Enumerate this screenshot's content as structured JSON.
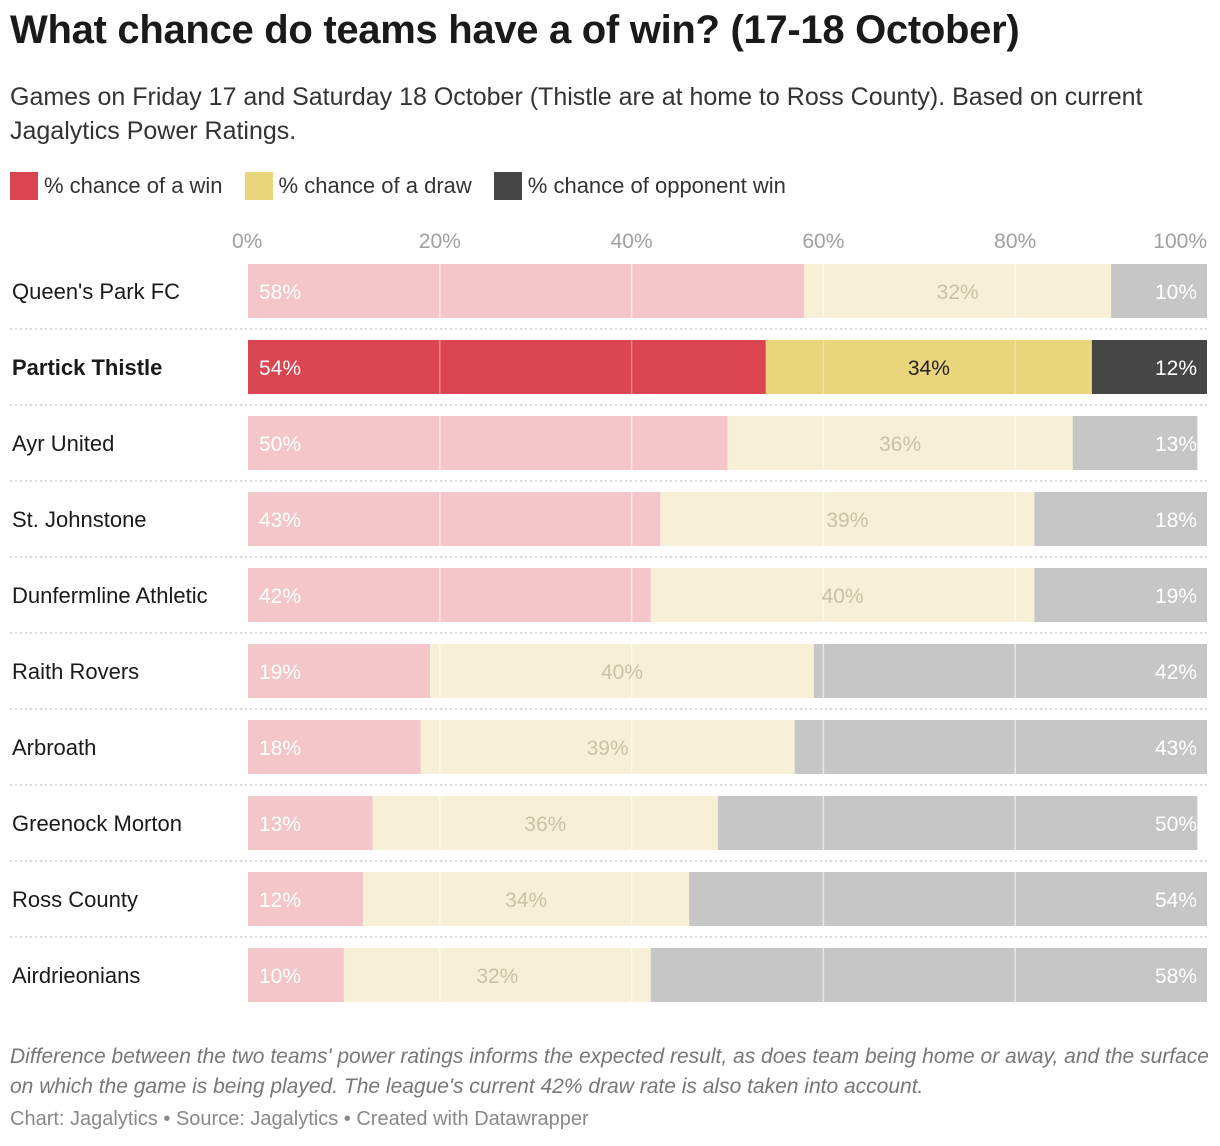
{
  "title": "What chance do teams have a of win? (17-18 October)",
  "subtitle": "Games on Friday 17 and Saturday 18 October (Thistle are at home to Ross County). Based on current Jagalytics Power Ratings.",
  "notes": "Difference between the two teams' power ratings informs the expected result, as does team being home or away, and the surface on which the game is being played. The league's current 42% draw rate is also taken into account.",
  "byline": "Chart: Jagalytics • Source: Jagalytics • Created with Datawrapper",
  "chart_data": {
    "type": "bar",
    "orientation": "horizontal",
    "stacked": true,
    "xlim": [
      0,
      100
    ],
    "x_ticks": [
      "0%",
      "20%",
      "40%",
      "60%",
      "80%",
      "100%"
    ],
    "legend_placement": "top-left",
    "highlighted_category": "Partick Thistle",
    "categories": [
      "Queen's Park FC",
      "Partick Thistle",
      "Ayr United",
      "St. Johnstone",
      "Dunfermline Athletic",
      "Raith Rovers",
      "Arbroath",
      "Greenock Morton",
      "Ross County",
      "Airdrieonians"
    ],
    "series": [
      {
        "name": "% chance of a win",
        "color": "#db4551",
        "muted_color": "#f4c6c9",
        "values": [
          58,
          54,
          50,
          43,
          42,
          19,
          18,
          13,
          12,
          10
        ]
      },
      {
        "name": "% chance of a draw",
        "color": "#e8d57c",
        "muted_color": "#f7f0d6",
        "values": [
          32,
          34,
          36,
          39,
          40,
          40,
          39,
          36,
          34,
          32
        ]
      },
      {
        "name": "% chance of opponent win",
        "color": "#464646",
        "muted_color": "#c6c6c6",
        "values": [
          10,
          12,
          13,
          18,
          19,
          42,
          43,
          50,
          54,
          58
        ]
      }
    ]
  }
}
